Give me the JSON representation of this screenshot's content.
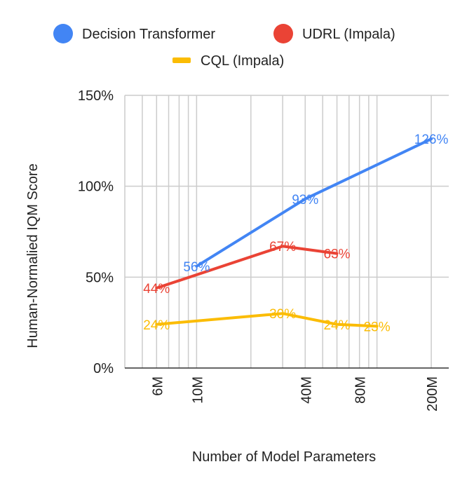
{
  "chart_data": {
    "type": "line",
    "xlabel": "Number of Model Parameters",
    "ylabel": "Human-Normalied IQM Score",
    "x_scale": "log",
    "xlim": [
      4000000,
      250000000
    ],
    "ylim": [
      0,
      150
    ],
    "y_ticks": [
      0,
      50,
      100,
      150
    ],
    "y_tick_labels": [
      "0%",
      "50%",
      "100%",
      "150%"
    ],
    "x_tick_labels": [
      "6M",
      "10M",
      "40M",
      "80M",
      "200M"
    ],
    "grid": true,
    "legend_position": "top",
    "series": [
      {
        "name": "Decision Transformer",
        "color": "#4285F4",
        "marker": "circle",
        "x": [
          10000000,
          40000000,
          200000000
        ],
        "values": [
          56,
          93,
          126
        ],
        "labels": [
          "56%",
          "93%",
          "126%"
        ]
      },
      {
        "name": "UDRL (Impala)",
        "color": "#EA4335",
        "marker": "circle",
        "x": [
          6000000,
          30000000,
          60000000
        ],
        "values": [
          44,
          67,
          63
        ],
        "labels": [
          "44%",
          "67%",
          "63%"
        ]
      },
      {
        "name": "CQL (Impala)",
        "color": "#FBBC04",
        "marker": "line",
        "x": [
          6000000,
          30000000,
          60000000,
          100000000
        ],
        "values": [
          24,
          30,
          24,
          23
        ],
        "labels": [
          "24%",
          "30%",
          "24%",
          "23%"
        ]
      }
    ]
  }
}
